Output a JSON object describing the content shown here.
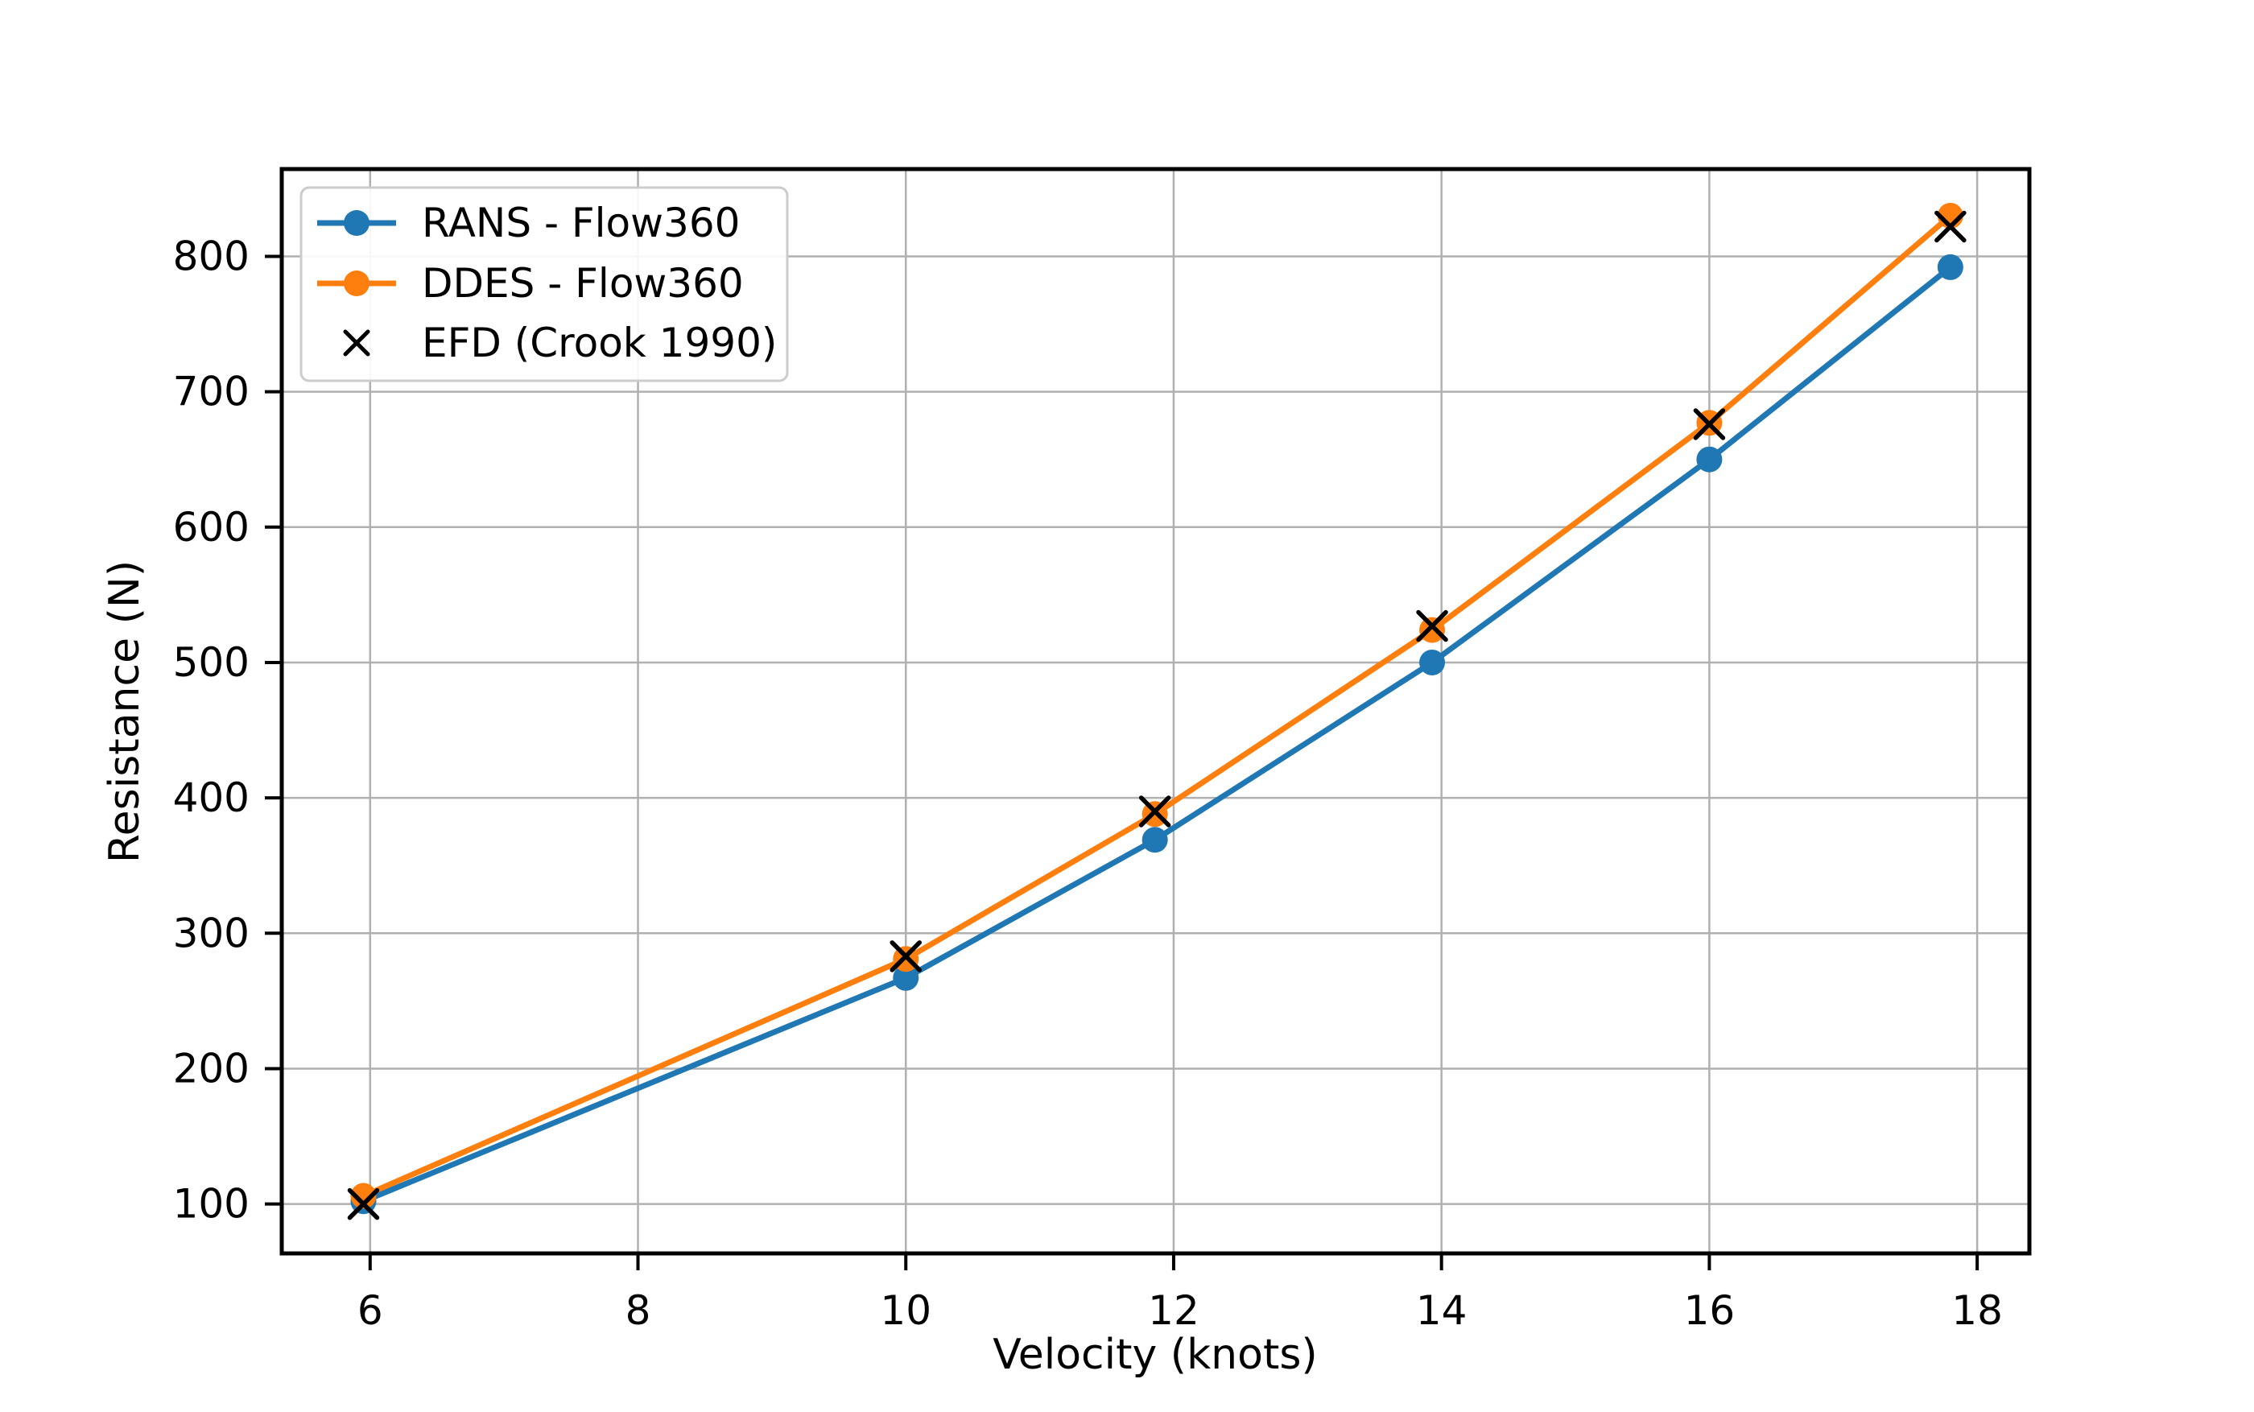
{
  "figure": {
    "background": "#ffffff",
    "spine_color": "#000000",
    "grid_color": "#b0b0b0",
    "legend_border_color": "#cccccc",
    "legend_background": "#ffffff"
  },
  "chart_data": {
    "type": "line",
    "title": "",
    "xlabel": "Velocity (knots)",
    "ylabel": "Resistance (N)",
    "xlim": [
      5.34,
      18.39
    ],
    "ylim": [
      63.5,
      864.5
    ],
    "xticks": [
      6,
      8,
      10,
      12,
      14,
      16,
      18
    ],
    "yticks": [
      100,
      200,
      300,
      400,
      500,
      600,
      700,
      800
    ],
    "grid": true,
    "legend_position": "upper left",
    "x": [
      5.95,
      10.0,
      11.86,
      13.93,
      16.0,
      17.8
    ],
    "series": [
      {
        "name": "RANS - Flow360",
        "color": "#1f77b4",
        "marker": "circle",
        "line": true,
        "values": [
          102,
          267,
          369,
          500,
          650,
          792
        ]
      },
      {
        "name": "DDES - Flow360",
        "color": "#ff7f0e",
        "marker": "circle",
        "line": true,
        "values": [
          106,
          281,
          388,
          524,
          677,
          830
        ]
      },
      {
        "name": "EFD (Crook 1990)",
        "color": "#000000",
        "marker": "x",
        "line": false,
        "values": [
          100,
          283,
          390,
          527,
          676,
          822
        ]
      }
    ]
  }
}
